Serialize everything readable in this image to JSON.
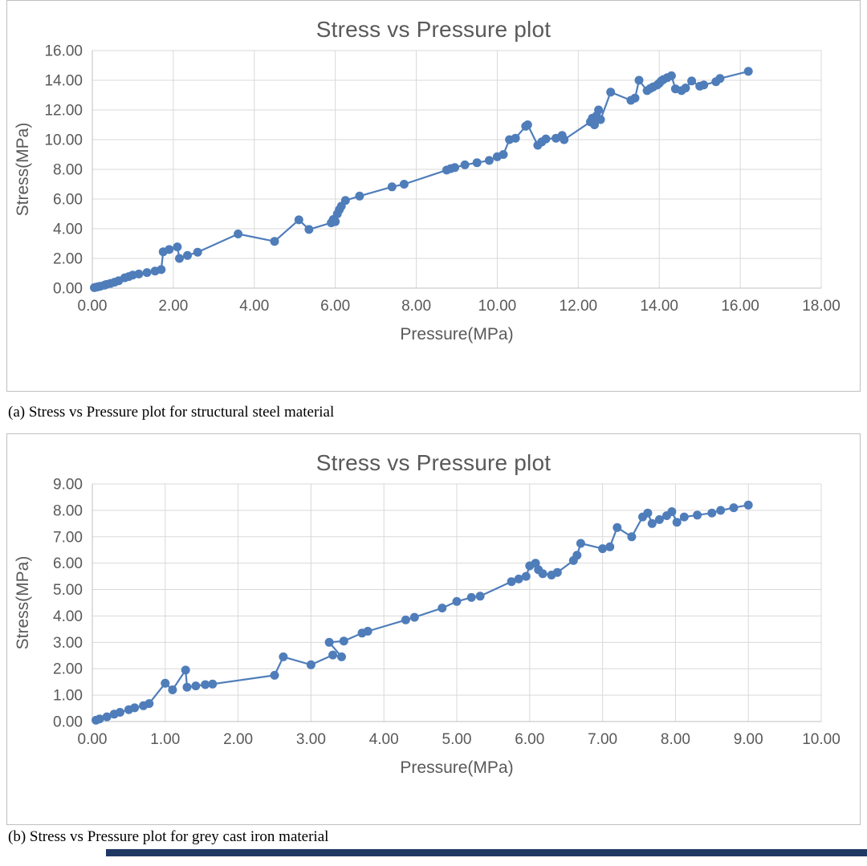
{
  "page": {
    "background": "#ffffff",
    "bottom_bar_color": "#1f3864"
  },
  "chart_data": [
    {
      "type": "scatter",
      "title": "Stress vs Pressure plot",
      "caption": "(a) Stress vs Pressure plot for structural steel material",
      "xlabel": "Pressure(MPa)",
      "ylabel": "Stress(MPa)",
      "xlim": [
        0,
        18
      ],
      "ylim": [
        0,
        16
      ],
      "xticks": [
        "0.00",
        "2.00",
        "4.00",
        "6.00",
        "8.00",
        "10.00",
        "12.00",
        "14.00",
        "16.00",
        "18.00"
      ],
      "yticks": [
        "0.00",
        "2.00",
        "4.00",
        "6.00",
        "8.00",
        "10.00",
        "12.00",
        "14.00",
        "16.00"
      ],
      "grid": true,
      "legend": "none",
      "series_color": "#4f7dba",
      "grid_color": "#d9d9d9",
      "axis_color": "#bfbfbf",
      "text_color": "#595959",
      "points": [
        [
          0.05,
          0.03
        ],
        [
          0.1,
          0.07
        ],
        [
          0.15,
          0.1
        ],
        [
          0.2,
          0.13
        ],
        [
          0.3,
          0.2
        ],
        [
          0.35,
          0.25
        ],
        [
          0.45,
          0.32
        ],
        [
          0.55,
          0.4
        ],
        [
          0.65,
          0.5
        ],
        [
          0.8,
          0.7
        ],
        [
          0.9,
          0.78
        ],
        [
          1.0,
          0.88
        ],
        [
          1.15,
          0.95
        ],
        [
          1.35,
          1.05
        ],
        [
          1.55,
          1.15
        ],
        [
          1.7,
          1.25
        ],
        [
          1.75,
          2.45
        ],
        [
          1.9,
          2.6
        ],
        [
          2.1,
          2.78
        ],
        [
          2.15,
          2.0
        ],
        [
          2.35,
          2.2
        ],
        [
          2.6,
          2.42
        ],
        [
          3.6,
          3.65
        ],
        [
          4.5,
          3.15
        ],
        [
          5.1,
          4.6
        ],
        [
          5.35,
          3.95
        ],
        [
          5.9,
          4.4
        ],
        [
          5.95,
          4.62
        ],
        [
          6.0,
          4.48
        ],
        [
          6.05,
          5.0
        ],
        [
          6.1,
          5.28
        ],
        [
          6.15,
          5.52
        ],
        [
          6.25,
          5.9
        ],
        [
          6.6,
          6.2
        ],
        [
          7.4,
          6.82
        ],
        [
          7.7,
          7.0
        ],
        [
          8.75,
          7.95
        ],
        [
          8.85,
          8.05
        ],
        [
          8.95,
          8.12
        ],
        [
          9.2,
          8.3
        ],
        [
          9.5,
          8.45
        ],
        [
          9.8,
          8.6
        ],
        [
          10.0,
          8.85
        ],
        [
          10.15,
          9.0
        ],
        [
          10.3,
          10.0
        ],
        [
          10.45,
          10.1
        ],
        [
          10.7,
          10.9
        ],
        [
          10.75,
          11.0
        ],
        [
          11.0,
          9.62
        ],
        [
          11.1,
          9.85
        ],
        [
          11.2,
          10.05
        ],
        [
          11.45,
          10.1
        ],
        [
          11.6,
          10.28
        ],
        [
          11.65,
          10.0
        ],
        [
          12.3,
          11.2
        ],
        [
          12.35,
          11.45
        ],
        [
          12.4,
          11.0
        ],
        [
          12.45,
          11.6
        ],
        [
          12.5,
          12.0
        ],
        [
          12.55,
          11.35
        ],
        [
          12.8,
          13.2
        ],
        [
          13.3,
          12.65
        ],
        [
          13.4,
          12.8
        ],
        [
          13.5,
          14.0
        ],
        [
          13.7,
          13.3
        ],
        [
          13.78,
          13.45
        ],
        [
          13.85,
          13.55
        ],
        [
          13.95,
          13.68
        ],
        [
          14.0,
          13.8
        ],
        [
          14.05,
          13.95
        ],
        [
          14.1,
          14.05
        ],
        [
          14.2,
          14.18
        ],
        [
          14.3,
          14.3
        ],
        [
          14.4,
          13.42
        ],
        [
          14.55,
          13.3
        ],
        [
          14.65,
          13.48
        ],
        [
          14.8,
          13.95
        ],
        [
          15.0,
          13.6
        ],
        [
          15.1,
          13.68
        ],
        [
          15.4,
          13.9
        ],
        [
          15.5,
          14.12
        ],
        [
          16.2,
          14.6
        ]
      ]
    },
    {
      "type": "scatter",
      "title": "Stress vs Pressure plot",
      "caption": "(b) Stress vs Pressure plot for grey cast iron material",
      "xlabel": "Pressure(MPa)",
      "ylabel": "Stress(MPa)",
      "xlim": [
        0,
        10
      ],
      "ylim": [
        0,
        9
      ],
      "xticks": [
        "0.00",
        "1.00",
        "2.00",
        "3.00",
        "4.00",
        "5.00",
        "6.00",
        "7.00",
        "8.00",
        "9.00",
        "10.00"
      ],
      "yticks": [
        "0.00",
        "1.00",
        "2.00",
        "3.00",
        "4.00",
        "5.00",
        "6.00",
        "7.00",
        "8.00",
        "9.00"
      ],
      "grid": true,
      "legend": "none",
      "series_color": "#4f7dba",
      "grid_color": "#d9d9d9",
      "axis_color": "#bfbfbf",
      "text_color": "#595959",
      "points": [
        [
          0.05,
          0.05
        ],
        [
          0.1,
          0.1
        ],
        [
          0.2,
          0.18
        ],
        [
          0.3,
          0.28
        ],
        [
          0.38,
          0.35
        ],
        [
          0.5,
          0.45
        ],
        [
          0.58,
          0.52
        ],
        [
          0.7,
          0.6
        ],
        [
          0.78,
          0.68
        ],
        [
          1.0,
          1.45
        ],
        [
          1.1,
          1.2
        ],
        [
          1.28,
          1.95
        ],
        [
          1.3,
          1.3
        ],
        [
          1.42,
          1.35
        ],
        [
          1.55,
          1.4
        ],
        [
          1.65,
          1.42
        ],
        [
          2.5,
          1.75
        ],
        [
          2.62,
          2.45
        ],
        [
          3.0,
          2.15
        ],
        [
          3.3,
          2.52
        ],
        [
          3.42,
          2.45
        ],
        [
          3.25,
          3.0
        ],
        [
          3.45,
          3.05
        ],
        [
          3.7,
          3.35
        ],
        [
          3.78,
          3.42
        ],
        [
          4.3,
          3.85
        ],
        [
          4.42,
          3.95
        ],
        [
          4.8,
          4.3
        ],
        [
          5.0,
          4.55
        ],
        [
          5.2,
          4.7
        ],
        [
          5.32,
          4.75
        ],
        [
          5.75,
          5.3
        ],
        [
          5.85,
          5.4
        ],
        [
          5.95,
          5.5
        ],
        [
          6.0,
          5.9
        ],
        [
          6.08,
          6.0
        ],
        [
          6.12,
          5.75
        ],
        [
          6.18,
          5.6
        ],
        [
          6.3,
          5.55
        ],
        [
          6.38,
          5.65
        ],
        [
          6.6,
          6.1
        ],
        [
          6.65,
          6.3
        ],
        [
          6.7,
          6.75
        ],
        [
          7.0,
          6.55
        ],
        [
          7.1,
          6.62
        ],
        [
          7.2,
          7.35
        ],
        [
          7.4,
          7.0
        ],
        [
          7.55,
          7.75
        ],
        [
          7.62,
          7.9
        ],
        [
          7.68,
          7.5
        ],
        [
          7.78,
          7.65
        ],
        [
          7.88,
          7.8
        ],
        [
          7.95,
          7.95
        ],
        [
          8.02,
          7.55
        ],
        [
          8.12,
          7.75
        ],
        [
          8.3,
          7.82
        ],
        [
          8.5,
          7.9
        ],
        [
          8.62,
          8.0
        ],
        [
          8.8,
          8.1
        ],
        [
          9.0,
          8.2
        ]
      ]
    }
  ]
}
